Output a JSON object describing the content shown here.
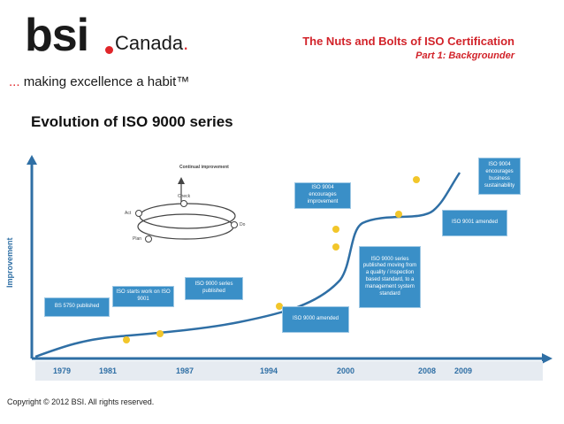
{
  "header": {
    "logo_text": "bsi",
    "logo_suffix": "Canada",
    "tagline_dots": "...",
    "tagline": "making excellence a habit™",
    "title": "The Nuts and Bolts of ISO Certification",
    "subtitle": "Part 1: Backgrounder"
  },
  "section_title": "Evolution of ISO 9000 series",
  "diagram": {
    "y_axis_label": "Improvement",
    "years": [
      "1979",
      "1981",
      "1987",
      "1994",
      "2000",
      "2008",
      "2009"
    ],
    "boxes": [
      "BS 5750 published",
      "ISO starts work on ISO 9001",
      "ISO 9000 series published",
      "ISO 9000 amended",
      "ISO 9004 encourages improvement",
      "ISO 9000 series published moving from a quality / inspection based standard, to a management system standard",
      "ISO 9001 amended",
      "ISO 9004 encourages business sustainability"
    ],
    "cycle": {
      "title": "Continual improvement",
      "check": "Check",
      "act": "Act",
      "do": "Do",
      "plan": "Plan"
    }
  },
  "footer": {
    "copyright": "Copyright © 2012 BSI. All rights reserved."
  },
  "colors": {
    "accent_red": "#d2232a",
    "box_blue": "#3a8fc7",
    "curve_blue": "#2f6fa5",
    "dot_yellow": "#f2c62a"
  }
}
